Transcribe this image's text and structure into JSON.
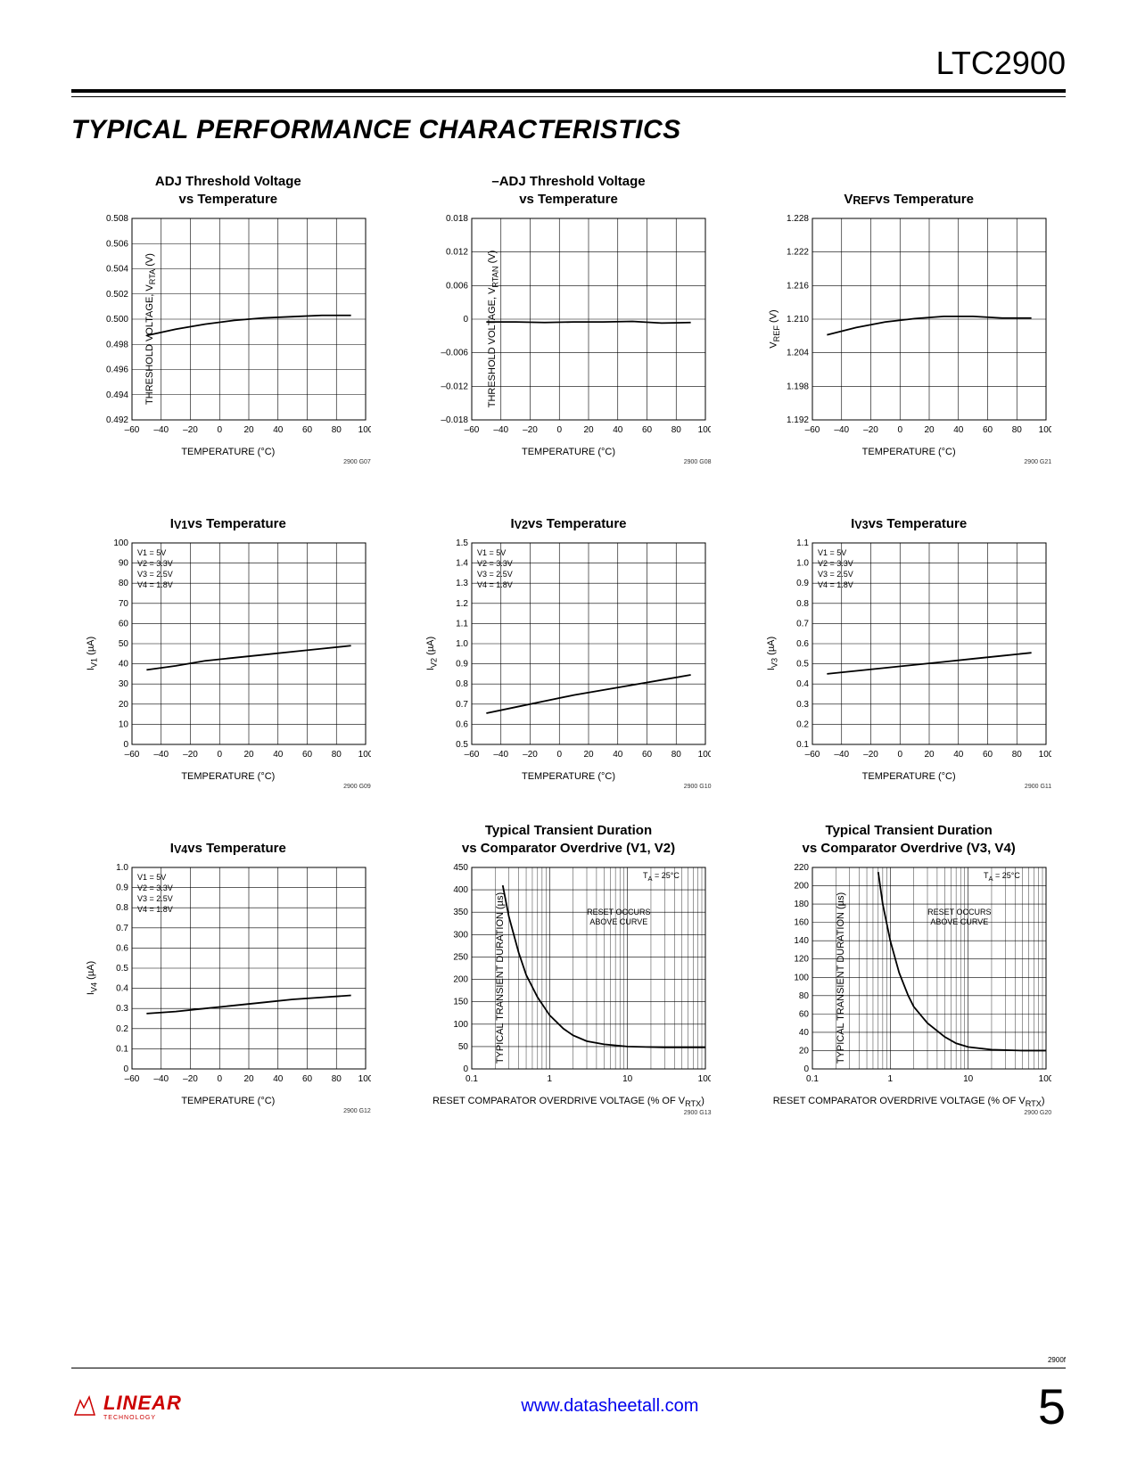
{
  "part_number": "LTC2900",
  "section_title": "TYPICAL PERFORMANCE CHARACTERISTICS",
  "page_number": "5",
  "doc_rev": "2900f",
  "footer_url": "www.datasheetall.com",
  "logo_text": "LINEAR",
  "logo_sub": "TECHNOLOGY",
  "colors": {
    "grid": "#000000",
    "line": "#000000",
    "bg": "#ffffff",
    "logo": "#cc0000",
    "link": "#0000ee"
  },
  "charts": [
    {
      "title": "ADJ Threshold Voltage<br>vs Temperature",
      "ylabel": "THRESHOLD VOLTAGE, V<sub>RTA</sub> (V)",
      "xlabel": "TEMPERATURE (°C)",
      "fig_id": "2900 G07",
      "xlim": [
        -60,
        100
      ],
      "xticks": [
        -60,
        -40,
        -20,
        0,
        20,
        40,
        60,
        80,
        100
      ],
      "ylim": [
        0.492,
        0.508
      ],
      "yticks": [
        0.492,
        0.494,
        0.496,
        0.498,
        0.5,
        0.502,
        0.504,
        0.506,
        0.508
      ],
      "ytick_fmt": "0.000",
      "scale": "linear",
      "series": [
        {
          "x": [
            -50,
            -30,
            -10,
            10,
            30,
            50,
            70,
            90
          ],
          "y": [
            0.4987,
            0.4992,
            0.4996,
            0.4999,
            0.5001,
            0.5002,
            0.5003,
            0.5003
          ]
        }
      ]
    },
    {
      "title": "–ADJ Threshold Voltage<br>vs Temperature",
      "ylabel": "THRESHOLD VOLTAGE, V<sub>RTAN</sub> (V)",
      "xlabel": "TEMPERATURE (°C)",
      "fig_id": "2900 G08",
      "xlim": [
        -60,
        100
      ],
      "xticks": [
        -60,
        -40,
        -20,
        0,
        20,
        40,
        60,
        80,
        100
      ],
      "ylim": [
        -0.018,
        0.018
      ],
      "yticks": [
        -0.018,
        -0.012,
        -0.006,
        0,
        0.006,
        0.012,
        0.018
      ],
      "ytick_fmt": "neg3",
      "scale": "linear",
      "series": [
        {
          "x": [
            -50,
            -30,
            -10,
            10,
            30,
            50,
            70,
            90
          ],
          "y": [
            -0.0005,
            -0.0005,
            -0.0006,
            -0.0005,
            -0.0005,
            -0.0004,
            -0.0007,
            -0.0006
          ]
        }
      ]
    },
    {
      "title": "V<sub>REF</sub> vs Temperature",
      "ylabel": "V<sub>REF</sub> (V)",
      "xlabel": "TEMPERATURE (°C)",
      "fig_id": "2900 G21",
      "xlim": [
        -60,
        100
      ],
      "xticks": [
        -60,
        -40,
        -20,
        0,
        20,
        40,
        60,
        80,
        100
      ],
      "ylim": [
        1.192,
        1.228
      ],
      "yticks": [
        1.192,
        1.198,
        1.204,
        1.21,
        1.216,
        1.222,
        1.228
      ],
      "ytick_fmt": "0.000",
      "scale": "linear",
      "series": [
        {
          "x": [
            -50,
            -30,
            -10,
            10,
            30,
            50,
            70,
            90
          ],
          "y": [
            1.2072,
            1.2085,
            1.2095,
            1.2101,
            1.2105,
            1.2105,
            1.2102,
            1.2102
          ]
        }
      ]
    },
    {
      "title": "I<sub>V1</sub> vs Temperature",
      "ylabel": "I<sub>V1</sub> (µA)",
      "xlabel": "TEMPERATURE (°C)",
      "fig_id": "2900 G09",
      "xlim": [
        -60,
        100
      ],
      "xticks": [
        -60,
        -40,
        -20,
        0,
        20,
        40,
        60,
        80,
        100
      ],
      "ylim": [
        0,
        100
      ],
      "yticks": [
        0,
        10,
        20,
        30,
        40,
        50,
        60,
        70,
        80,
        90,
        100
      ],
      "ytick_fmt": "int",
      "scale": "linear",
      "annot": [
        "V1 = 5V",
        "V2 = 3.3V",
        "V3 = 2.5V",
        "V4 = 1.8V"
      ],
      "series": [
        {
          "x": [
            -50,
            -30,
            -10,
            10,
            30,
            50,
            70,
            90
          ],
          "y": [
            37,
            39,
            41.5,
            43,
            44.5,
            46,
            47.5,
            49
          ]
        }
      ]
    },
    {
      "title": "I<sub>V2</sub> vs Temperature",
      "ylabel": "I<sub>V2</sub> (µA)",
      "xlabel": "TEMPERATURE (°C)",
      "fig_id": "2900 G10",
      "xlim": [
        -60,
        100
      ],
      "xticks": [
        -60,
        -40,
        -20,
        0,
        20,
        40,
        60,
        80,
        100
      ],
      "ylim": [
        0.5,
        1.5
      ],
      "yticks": [
        0.5,
        0.6,
        0.7,
        0.8,
        0.9,
        1.0,
        1.1,
        1.2,
        1.3,
        1.4,
        1.5
      ],
      "ytick_fmt": "0.0",
      "scale": "linear",
      "annot": [
        "V1 = 5V",
        "V2 = 3.3V",
        "V3 = 2.5V",
        "V4 = 1.8V"
      ],
      "series": [
        {
          "x": [
            -50,
            -30,
            -10,
            10,
            30,
            50,
            70,
            90
          ],
          "y": [
            0.655,
            0.685,
            0.715,
            0.745,
            0.77,
            0.795,
            0.82,
            0.845
          ]
        }
      ]
    },
    {
      "title": "I<sub>V3</sub> vs Temperature",
      "ylabel": "I<sub>V3</sub> (µA)",
      "xlabel": "TEMPERATURE (°C)",
      "fig_id": "2900 G11",
      "xlim": [
        -60,
        100
      ],
      "xticks": [
        -60,
        -40,
        -20,
        0,
        20,
        40,
        60,
        80,
        100
      ],
      "ylim": [
        0.1,
        1.1
      ],
      "yticks": [
        0.1,
        0.2,
        0.3,
        0.4,
        0.5,
        0.6,
        0.7,
        0.8,
        0.9,
        1.0,
        1.1
      ],
      "ytick_fmt": "0.0",
      "scale": "linear",
      "annot": [
        "V1 = 5V",
        "V2 = 3.3V",
        "V3 = 2.5V",
        "V4 = 1.8V"
      ],
      "series": [
        {
          "x": [
            -50,
            -30,
            -10,
            10,
            30,
            50,
            70,
            90
          ],
          "y": [
            0.45,
            0.465,
            0.48,
            0.495,
            0.51,
            0.525,
            0.54,
            0.555
          ]
        }
      ]
    },
    {
      "title": "I<sub>V4</sub> vs Temperature",
      "ylabel": "I<sub>V4</sub> (µA)",
      "xlabel": "TEMPERATURE (°C)",
      "fig_id": "2900 G12",
      "xlim": [
        -60,
        100
      ],
      "xticks": [
        -60,
        -40,
        -20,
        0,
        20,
        40,
        60,
        80,
        100
      ],
      "ylim": [
        0,
        1.0
      ],
      "yticks": [
        0,
        0.1,
        0.2,
        0.3,
        0.4,
        0.5,
        0.6,
        0.7,
        0.8,
        0.9,
        1.0
      ],
      "ytick_fmt": "0.0z",
      "scale": "linear",
      "annot": [
        "V1 = 5V",
        "V2 = 3.3V",
        "V3 = 2.5V",
        "V4 = 1.8V"
      ],
      "series": [
        {
          "x": [
            -50,
            -30,
            -10,
            10,
            30,
            50,
            70,
            90
          ],
          "y": [
            0.275,
            0.285,
            0.3,
            0.315,
            0.33,
            0.345,
            0.355,
            0.365
          ]
        }
      ]
    },
    {
      "title": "Typical Transient Duration<br>vs Comparator Overdrive (V1, V2)",
      "ylabel": "TYPICAL TRANSIENT DURATION (µs)",
      "xlabel": "RESET COMPARATOR OVERDRIVE VOLTAGE (% OF V<sub>RTX</sub>)",
      "fig_id": "2900 G13",
      "xlim": [
        0.1,
        100
      ],
      "xticks": [
        0.1,
        1,
        10,
        100
      ],
      "ylim": [
        0,
        450
      ],
      "yticks": [
        0,
        50,
        100,
        150,
        200,
        250,
        300,
        350,
        400,
        450
      ],
      "ytick_fmt": "int",
      "scale": "log",
      "annot_top_right": "T<sub>A</sub> = 25°C",
      "center_label": "RESET OCCURS<br>ABOVE CURVE",
      "series": [
        {
          "x": [
            0.25,
            0.3,
            0.4,
            0.5,
            0.7,
            1,
            1.5,
            2,
            3,
            5,
            10,
            30,
            100
          ],
          "y": [
            410,
            340,
            260,
            210,
            160,
            120,
            90,
            75,
            62,
            55,
            50,
            48,
            48
          ]
        }
      ]
    },
    {
      "title": "Typical Transient Duration<br>vs Comparator Overdrive (V3, V4)",
      "ylabel": "TYPICAL TRANSIENT DURATION (µs)",
      "xlabel": "RESET COMPARATOR OVERDRIVE VOLTAGE (% OF V<sub>RTX</sub>)",
      "fig_id": "2900 G20",
      "xlim": [
        0.1,
        100
      ],
      "xticks": [
        0.1,
        1,
        10,
        100
      ],
      "ylim": [
        0,
        220
      ],
      "yticks": [
        0,
        20,
        40,
        60,
        80,
        100,
        120,
        140,
        160,
        180,
        200,
        220
      ],
      "ytick_fmt": "int",
      "scale": "log",
      "annot_top_right": "T<sub>A</sub> = 25°C",
      "center_label": "RESET OCCURS<br>ABOVE CURVE",
      "series": [
        {
          "x": [
            0.7,
            0.8,
            1,
            1.3,
            1.7,
            2,
            3,
            5,
            7,
            10,
            20,
            50,
            100
          ],
          "y": [
            215,
            180,
            140,
            105,
            80,
            68,
            50,
            35,
            28,
            24,
            21,
            20,
            20
          ]
        }
      ]
    }
  ]
}
